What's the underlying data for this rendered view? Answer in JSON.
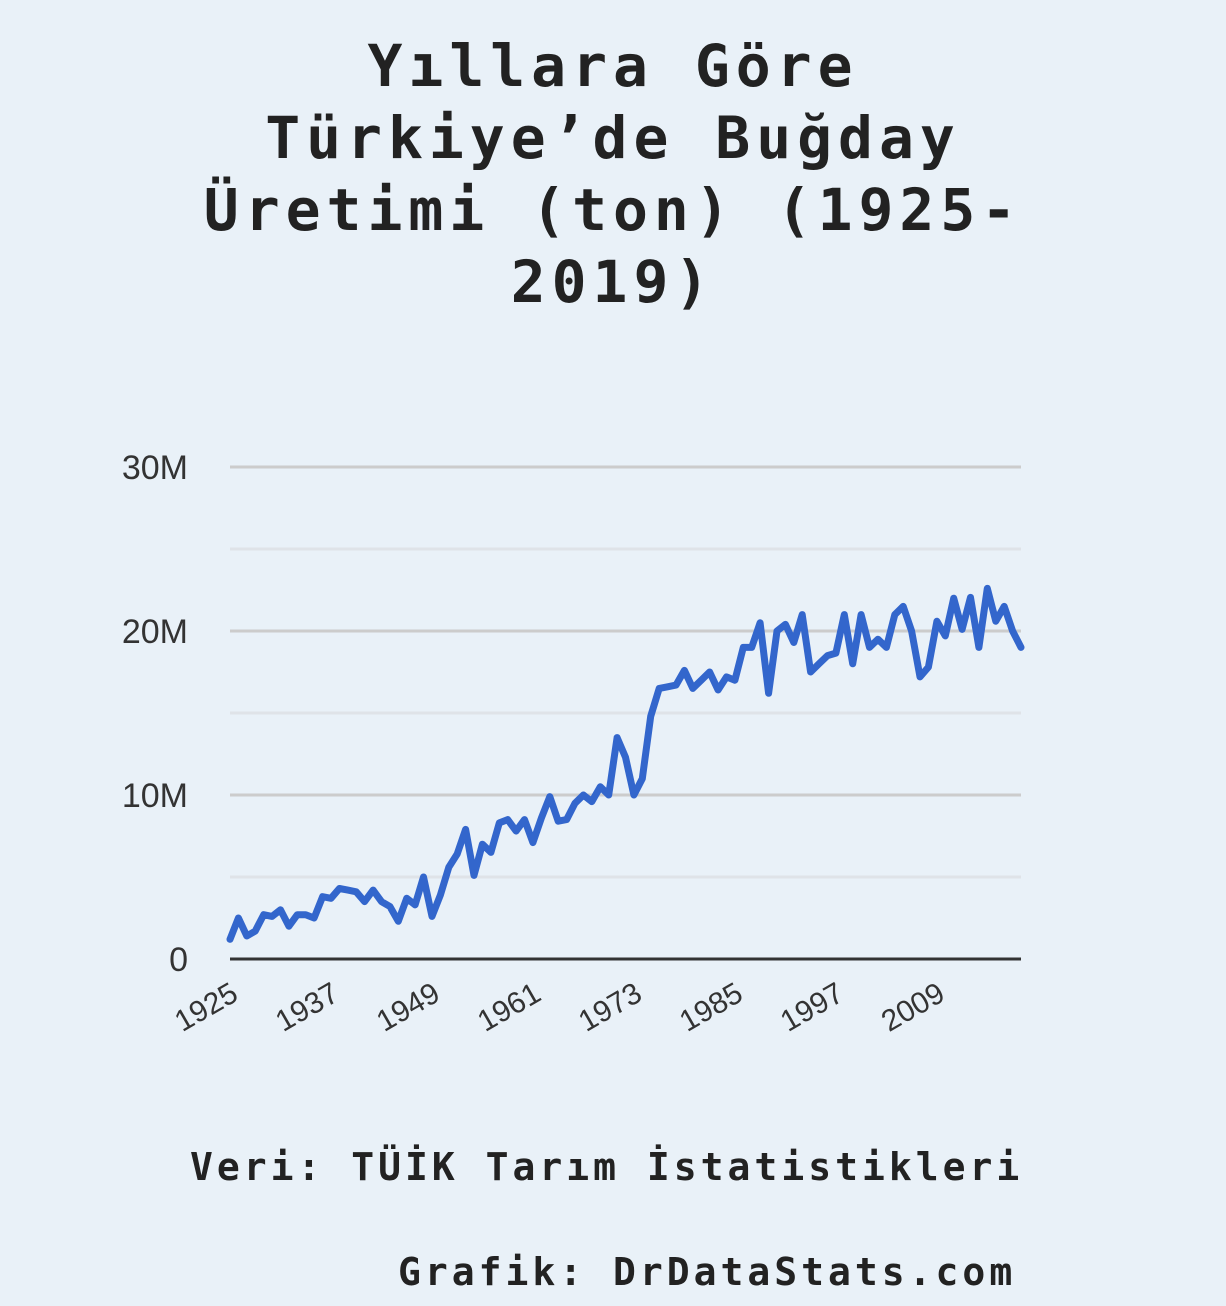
{
  "title_lines": [
    "Yıllara Göre",
    "Türkiye’de Buğday",
    "Üretimi (ton) (1925-",
    "2019)"
  ],
  "source": "Veri: TÜİK Tarım İstatistikleri",
  "credit": "Grafik: DrDataStats.com",
  "colors": {
    "background": "#e9f1f8",
    "line": "#3366cc",
    "gridline": "#cccccc",
    "baseline": "#333333"
  },
  "chart_data": {
    "type": "line",
    "title": "Yıllara Göre Türkiye’de Buğday Üretimi (ton) (1925-2019)",
    "xlabel": "",
    "ylabel": "",
    "ylim": [
      0,
      30000000
    ],
    "y_ticks": [
      0,
      10000000,
      20000000,
      30000000
    ],
    "y_tick_labels": [
      "0",
      "10M",
      "20M",
      "30M"
    ],
    "x_tick_labels": [
      "1925",
      "1937",
      "1949",
      "1961",
      "1973",
      "1985",
      "1997",
      "2009"
    ],
    "grid": true,
    "legend": "none",
    "series": [
      {
        "x": [
          1925,
          1926,
          1927,
          1928,
          1929,
          1930,
          1931,
          1932,
          1933,
          1934,
          1935,
          1936,
          1937,
          1938,
          1939,
          1940,
          1941,
          1942,
          1943,
          1944,
          1945,
          1946,
          1947,
          1948,
          1949,
          1950,
          1951,
          1952,
          1953,
          1954,
          1955,
          1956,
          1957,
          1958,
          1959,
          1960,
          1961,
          1962,
          1963,
          1964,
          1965,
          1966,
          1967,
          1968,
          1969,
          1970,
          1971,
          1972,
          1973,
          1974,
          1975,
          1976,
          1977,
          1978,
          1979,
          1980,
          1981,
          1982,
          1983,
          1984,
          1985,
          1986,
          1987,
          1988,
          1989,
          1990,
          1991,
          1992,
          1993,
          1994,
          1995,
          1996,
          1997,
          1998,
          1999,
          2000,
          2001,
          2002,
          2003,
          2004,
          2005,
          2006,
          2007,
          2008,
          2009,
          2010,
          2011,
          2012,
          2013,
          2014,
          2015,
          2016,
          2017,
          2018,
          2019
        ],
        "y": [
          1200000,
          2500000,
          1400000,
          1700000,
          2700000,
          2600000,
          3000000,
          2000000,
          2700000,
          2700000,
          2500000,
          3800000,
          3700000,
          4300000,
          4200000,
          4100000,
          3500000,
          4200000,
          3500000,
          3200000,
          2300000,
          3700000,
          3300000,
          5000000,
          2600000,
          3900000,
          5600000,
          6400000,
          7900000,
          5100000,
          7000000,
          6500000,
          8300000,
          8500000,
          7800000,
          8500000,
          7100000,
          8600000,
          9900000,
          8400000,
          8500000,
          9500000,
          10000000,
          9600000,
          10500000,
          10000000,
          13500000,
          12300000,
          10000000,
          11000000,
          14800000,
          16500000,
          16600000,
          16700000,
          17600000,
          16500000,
          17000000,
          17500000,
          16400000,
          17200000,
          17000000,
          19000000,
          19000000,
          20500000,
          16200000,
          20000000,
          20400000,
          19300000,
          21000000,
          17500000,
          18000000,
          18500000,
          18650000,
          21000000,
          18000000,
          21000000,
          19000000,
          19500000,
          19000000,
          21000000,
          21500000,
          20000000,
          17200000,
          17800000,
          20600000,
          19700000,
          22000000,
          20100000,
          22050000,
          19000000,
          22600000,
          20600000,
          21500000,
          20000000,
          19000000
        ]
      }
    ]
  }
}
